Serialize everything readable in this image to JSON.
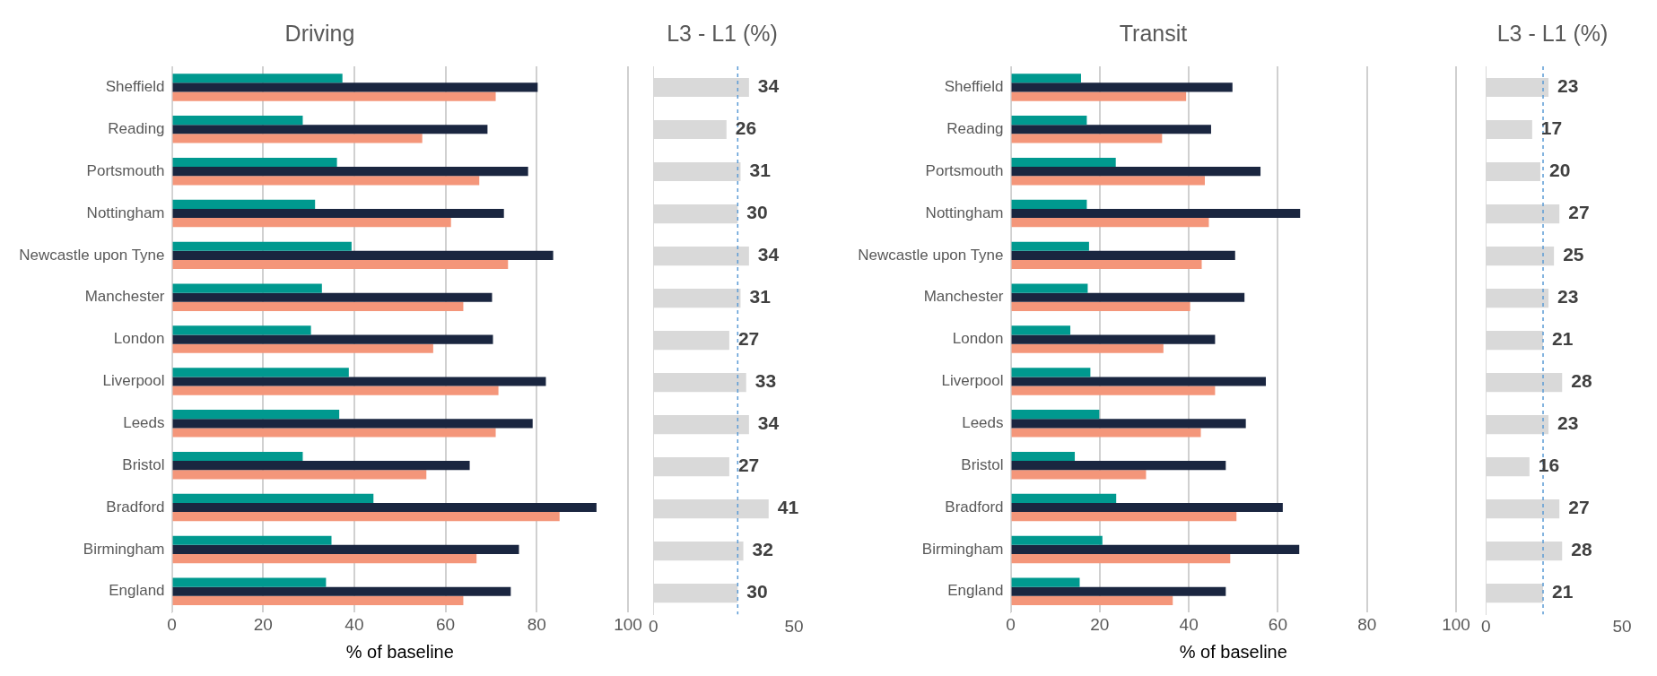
{
  "chart_data": [
    {
      "type": "bar",
      "orientation": "horizontal",
      "title": "Driving",
      "xlabel": "% of baseline",
      "categories": [
        "Sheffield",
        "Reading",
        "Portsmouth",
        "Nottingham",
        "Newcastle upon Tyne",
        "Manchester",
        "London",
        "Liverpool",
        "Leeds",
        "Bristol",
        "Bradford",
        "Birmingham",
        "England"
      ],
      "series": [
        {
          "color": "#00998f",
          "values": [
            37.4,
            28.7,
            36.2,
            31.4,
            39.4,
            32.9,
            30.5,
            38.8,
            36.7,
            28.7,
            44.2,
            35.0,
            33.8
          ]
        },
        {
          "color": "#1a2640",
          "values": [
            80.2,
            69.2,
            78.1,
            72.8,
            83.6,
            70.2,
            70.4,
            82.0,
            79.1,
            65.3,
            93.1,
            76.1,
            74.3
          ]
        },
        {
          "color": "#f4967a",
          "values": [
            71.0,
            54.9,
            67.4,
            61.2,
            73.7,
            63.9,
            57.3,
            71.6,
            71.0,
            55.8,
            85.0,
            66.8,
            63.9
          ]
        }
      ],
      "xlim": [
        0,
        100
      ],
      "xticks": [
        0,
        20,
        40,
        60,
        80,
        100
      ],
      "grid": "x"
    },
    {
      "type": "bar",
      "orientation": "horizontal",
      "title": "L3 - L1 (%)",
      "categories": [
        null,
        null,
        null,
        null,
        null,
        null,
        null,
        null,
        null,
        null,
        null,
        null,
        null
      ],
      "series": [
        {
          "color": "#d9d9d9",
          "values": [
            34,
            26,
            31,
            30,
            34,
            31,
            27,
            33,
            34,
            27,
            41,
            32,
            30
          ]
        }
      ],
      "xlim": [
        0,
        50
      ],
      "xticks": [
        0,
        50
      ],
      "tick_labels": "x",
      "data_labels": true,
      "ref_lines": [
        {
          "axis": "x",
          "value": 30,
          "color": "#5b9bd5",
          "line_style": "dashed"
        }
      ]
    },
    {
      "type": "bar",
      "orientation": "horizontal",
      "title": "Transit",
      "xlabel": "% of baseline",
      "categories": [
        "Sheffield",
        "Reading",
        "Portsmouth",
        "Nottingham",
        "Newcastle upon Tyne",
        "Manchester",
        "London",
        "Liverpool",
        "Leeds",
        "Bristol",
        "Bradford",
        "Birmingham",
        "England"
      ],
      "series": [
        {
          "color": "#00998f",
          "values": [
            15.8,
            17.1,
            23.6,
            17.1,
            17.6,
            17.3,
            13.4,
            17.9,
            19.9,
            14.4,
            23.7,
            20.6,
            15.5
          ]
        },
        {
          "color": "#1a2640",
          "values": [
            49.8,
            45.0,
            56.1,
            65.0,
            50.4,
            52.5,
            45.9,
            57.3,
            52.8,
            48.3,
            61.1,
            64.8,
            48.3
          ]
        },
        {
          "color": "#f4967a",
          "values": [
            39.4,
            34.0,
            43.6,
            44.5,
            42.9,
            40.3,
            34.3,
            45.9,
            42.7,
            30.4,
            50.7,
            49.3,
            36.4
          ]
        }
      ],
      "xlim": [
        0,
        100
      ],
      "xticks": [
        0,
        20,
        40,
        60,
        80,
        100
      ],
      "grid": "x"
    },
    {
      "type": "bar",
      "orientation": "horizontal",
      "title": "L3 - L1 (%)",
      "categories": [
        null,
        null,
        null,
        null,
        null,
        null,
        null,
        null,
        null,
        null,
        null,
        null,
        null
      ],
      "series": [
        {
          "color": "#d9d9d9",
          "values": [
            23,
            17,
            20,
            27,
            25,
            23,
            21,
            28,
            23,
            16,
            27,
            28,
            21
          ]
        }
      ],
      "xlim": [
        0,
        50
      ],
      "xticks": [
        0,
        50
      ],
      "tick_labels": "x",
      "data_labels": true,
      "ref_lines": [
        {
          "axis": "x",
          "value": 21,
          "color": "#5b9bd5",
          "line_style": "dashed"
        }
      ]
    }
  ]
}
